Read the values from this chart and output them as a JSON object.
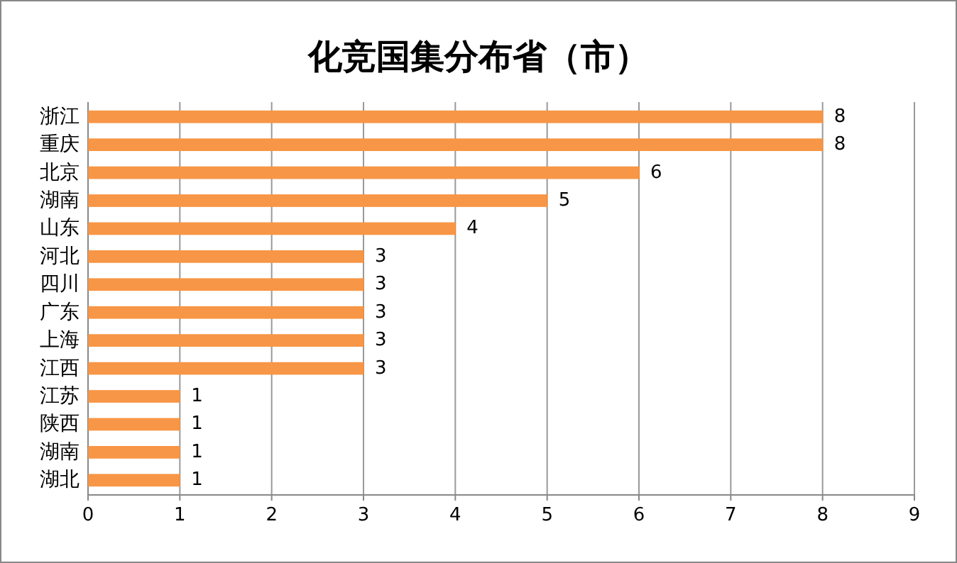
{
  "chart_data": {
    "type": "bar",
    "orientation": "horizontal",
    "title": "化竞国集分布省（市）",
    "categories": [
      "浙江",
      "重庆",
      "北京",
      "湖南",
      "山东",
      "河北",
      "四川",
      "广东",
      "上海",
      "江西",
      "江苏",
      "陕西",
      "湖南",
      "湖北"
    ],
    "values": [
      8,
      8,
      6,
      5,
      4,
      3,
      3,
      3,
      3,
      3,
      1,
      1,
      1,
      1
    ],
    "color": "#f79646",
    "xlim": [
      0,
      9
    ],
    "xticks": [
      0,
      1,
      2,
      3,
      4,
      5,
      6,
      7,
      8,
      9
    ],
    "grid": "x",
    "data_labels": true
  }
}
